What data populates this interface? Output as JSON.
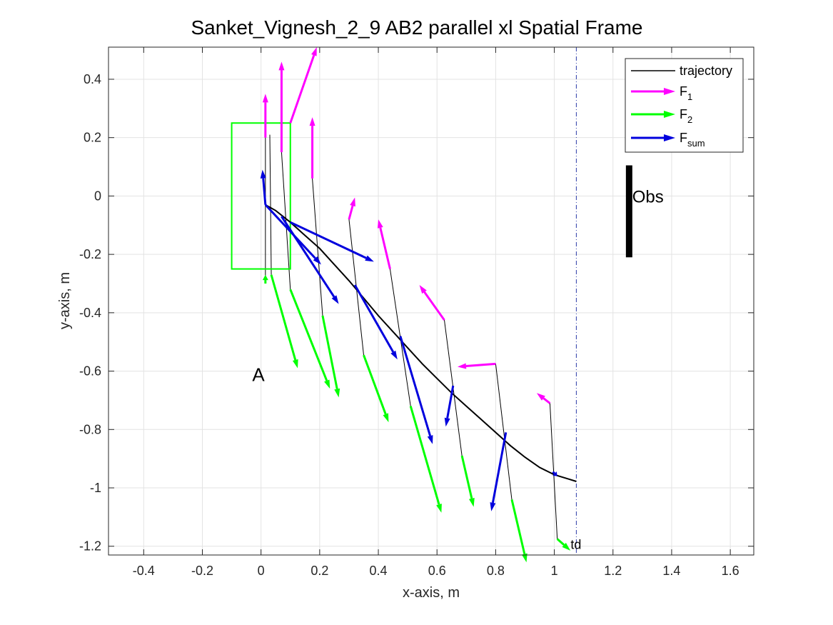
{
  "chart_data": {
    "type": "line",
    "title": "Sanket_Vignesh_2_9    AB2    parallel    xl  Spatial Frame",
    "xlabel": "x-axis, m",
    "ylabel": "y-axis, m",
    "xlim": [
      -0.52,
      1.68
    ],
    "ylim": [
      -1.23,
      0.51
    ],
    "x_ticks": [
      -0.4,
      -0.2,
      0,
      0.2,
      0.4,
      0.6,
      0.8,
      1,
      1.2,
      1.4,
      1.6
    ],
    "y_ticks": [
      0.4,
      0.2,
      0,
      -0.2,
      -0.4,
      -0.6,
      -0.8,
      -1,
      -1.2
    ],
    "x_tick_labels": [
      "-0.4",
      "-0.2",
      "0",
      "0.2",
      "0.4",
      "0.6",
      "0.8",
      "1",
      "1.2",
      "1.4",
      "1.6"
    ],
    "y_tick_labels": [
      "0.4",
      "0.2",
      "0",
      "-0.2",
      "-0.4",
      "-0.6",
      "-0.8",
      "-1",
      "-1.2"
    ],
    "grid": true,
    "legend_position": "top-right",
    "legend": [
      {
        "label": "trajectory",
        "sub": "",
        "color": "#000000",
        "kind": "line"
      },
      {
        "label": "F",
        "sub": "1",
        "color": "#ff00ff",
        "kind": "arrow"
      },
      {
        "label": "F",
        "sub": "2",
        "color": "#00ff00",
        "kind": "arrow"
      },
      {
        "label": "F",
        "sub": "sum",
        "color": "#0000dd",
        "kind": "arrow"
      }
    ],
    "trajectory": {
      "x": [
        0.015,
        0.05,
        0.1,
        0.15,
        0.2,
        0.25,
        0.3,
        0.35,
        0.4,
        0.45,
        0.5,
        0.55,
        0.6,
        0.65,
        0.7,
        0.75,
        0.8,
        0.85,
        0.9,
        0.95,
        1.0,
        1.05,
        1.075
      ],
      "y": [
        -0.03,
        -0.05,
        -0.09,
        -0.135,
        -0.18,
        -0.235,
        -0.29,
        -0.35,
        -0.41,
        -0.465,
        -0.52,
        -0.575,
        -0.625,
        -0.675,
        -0.72,
        -0.765,
        -0.81,
        -0.855,
        -0.895,
        -0.93,
        -0.955,
        -0.97,
        -0.978
      ]
    },
    "force_series": [
      {
        "name": "F1",
        "color": "#ff00ff",
        "arrows": [
          {
            "x0": 0.015,
            "y0": 0.2,
            "x1": 0.015,
            "y1": 0.35
          },
          {
            "x0": 0.07,
            "y0": 0.15,
            "x1": 0.07,
            "y1": 0.46
          },
          {
            "x0": 0.1,
            "y0": 0.25,
            "x1": 0.19,
            "y1": 0.51
          },
          {
            "x0": 0.175,
            "y0": 0.06,
            "x1": 0.175,
            "y1": 0.27
          },
          {
            "x0": 0.3,
            "y0": -0.08,
            "x1": 0.32,
            "y1": -0.005
          },
          {
            "x0": 0.44,
            "y0": -0.25,
            "x1": 0.4,
            "y1": -0.08
          },
          {
            "x0": 0.625,
            "y0": -0.425,
            "x1": 0.54,
            "y1": -0.305
          },
          {
            "x0": 0.8,
            "y0": -0.575,
            "x1": 0.67,
            "y1": -0.585
          },
          {
            "x0": 0.985,
            "y0": -0.71,
            "x1": 0.94,
            "y1": -0.675
          }
        ]
      },
      {
        "name": "F2",
        "color": "#00ff00",
        "arrows": [
          {
            "x0": 0.015,
            "y0": -0.3,
            "x1": 0.015,
            "y1": -0.27
          },
          {
            "x0": 0.035,
            "y0": -0.27,
            "x1": 0.125,
            "y1": -0.59
          },
          {
            "x0": 0.1,
            "y0": -0.32,
            "x1": 0.235,
            "y1": -0.66
          },
          {
            "x0": 0.21,
            "y0": -0.41,
            "x1": 0.265,
            "y1": -0.69
          },
          {
            "x0": 0.35,
            "y0": -0.545,
            "x1": 0.435,
            "y1": -0.775
          },
          {
            "x0": 0.51,
            "y0": -0.72,
            "x1": 0.615,
            "y1": -1.085
          },
          {
            "x0": 0.685,
            "y0": -0.89,
            "x1": 0.725,
            "y1": -1.065
          },
          {
            "x0": 0.855,
            "y0": -1.04,
            "x1": 0.905,
            "y1": -1.255
          },
          {
            "x0": 1.01,
            "y0": -1.175,
            "x1": 1.055,
            "y1": -1.215
          }
        ]
      },
      {
        "name": "Fsum",
        "color": "#0000dd",
        "arrows": [
          {
            "x0": 0.015,
            "y0": -0.03,
            "x1": 0.005,
            "y1": 0.09
          },
          {
            "x0": 0.015,
            "y0": -0.03,
            "x1": 0.205,
            "y1": -0.235
          },
          {
            "x0": 0.07,
            "y0": -0.07,
            "x1": 0.265,
            "y1": -0.37
          },
          {
            "x0": 0.1,
            "y0": -0.09,
            "x1": 0.385,
            "y1": -0.225
          },
          {
            "x0": 0.32,
            "y0": -0.305,
            "x1": 0.465,
            "y1": -0.56
          },
          {
            "x0": 0.475,
            "y0": -0.48,
            "x1": 0.585,
            "y1": -0.85
          },
          {
            "x0": 0.655,
            "y0": -0.65,
            "x1": 0.63,
            "y1": -0.79
          },
          {
            "x0": 0.835,
            "y0": -0.81,
            "x1": 0.785,
            "y1": -1.08
          },
          {
            "x0": 0.995,
            "y0": -0.945,
            "x1": 1.01,
            "y1": -0.96
          }
        ]
      }
    ],
    "step_lines": [
      [
        0.015,
        0.2,
        0.015,
        -0.3
      ],
      [
        0.03,
        0.21,
        0.035,
        -0.27
      ],
      [
        0.07,
        0.15,
        0.1,
        -0.32
      ],
      [
        0.175,
        0.06,
        0.21,
        -0.41
      ],
      [
        0.3,
        -0.08,
        0.35,
        -0.545
      ],
      [
        0.44,
        -0.25,
        0.51,
        -0.72
      ],
      [
        0.625,
        -0.425,
        0.685,
        -0.89
      ],
      [
        0.8,
        -0.575,
        0.855,
        -1.04
      ],
      [
        0.985,
        -0.71,
        1.01,
        -1.175
      ]
    ],
    "start_box": {
      "x": [
        -0.1,
        0.1
      ],
      "y": [
        -0.25,
        0.25
      ],
      "color": "#00ff00"
    },
    "obstacle": {
      "x": 1.255,
      "y": [
        -0.21,
        0.105
      ],
      "label": "Obs",
      "label_x": 1.29,
      "label_y": 0.0
    },
    "annotations": [
      {
        "text": "A",
        "x": -0.03,
        "y": -0.61
      }
    ],
    "td_line": {
      "x": 1.075,
      "label": "td",
      "label_x": 1.075,
      "label_y": -1.195,
      "color": "#2b3aa8"
    }
  }
}
